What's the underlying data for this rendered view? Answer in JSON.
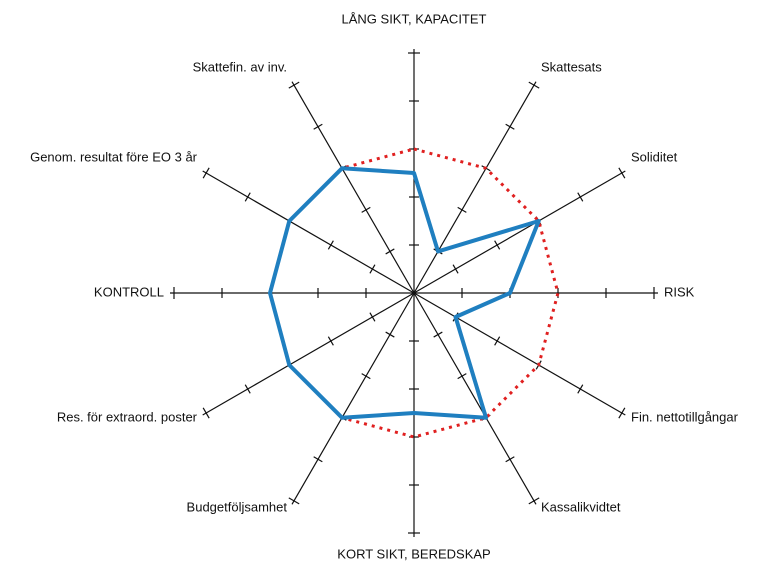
{
  "chart_data": {
    "type": "radar",
    "title": "",
    "categories": [
      "LÅNG SIKT, KAPACITET",
      "Skattesats",
      "Soliditet",
      "RISK",
      "Fin. nettotillgångar",
      "Kassalikvidtet",
      "KORT SIKT, BEREDSKAP",
      "Budgetföljsamhet",
      "Res. för extraord. poster",
      "KONTROLL",
      "Genom. resultat före EO 3 år",
      "Skattefin. av inv."
    ],
    "rlim": [
      0,
      5
    ],
    "ticks": [
      1,
      2,
      3,
      4,
      5
    ],
    "grid": "spokes-with-ticks",
    "legend": "none",
    "series": [
      {
        "values": [
          2.5,
          1.0,
          3.0,
          2.0,
          1.0,
          3.0,
          2.5,
          3.0,
          3.0,
          3.0,
          3.0,
          3.0
        ],
        "color": "#1f7fc0",
        "style": "solid"
      },
      {
        "values": [
          3.0,
          3.0,
          3.0,
          3.0,
          3.0,
          3.0,
          3.0,
          3.0,
          3.0,
          3.0,
          3.0,
          3.0
        ],
        "color": "#e02020",
        "style": "dotted"
      }
    ]
  }
}
